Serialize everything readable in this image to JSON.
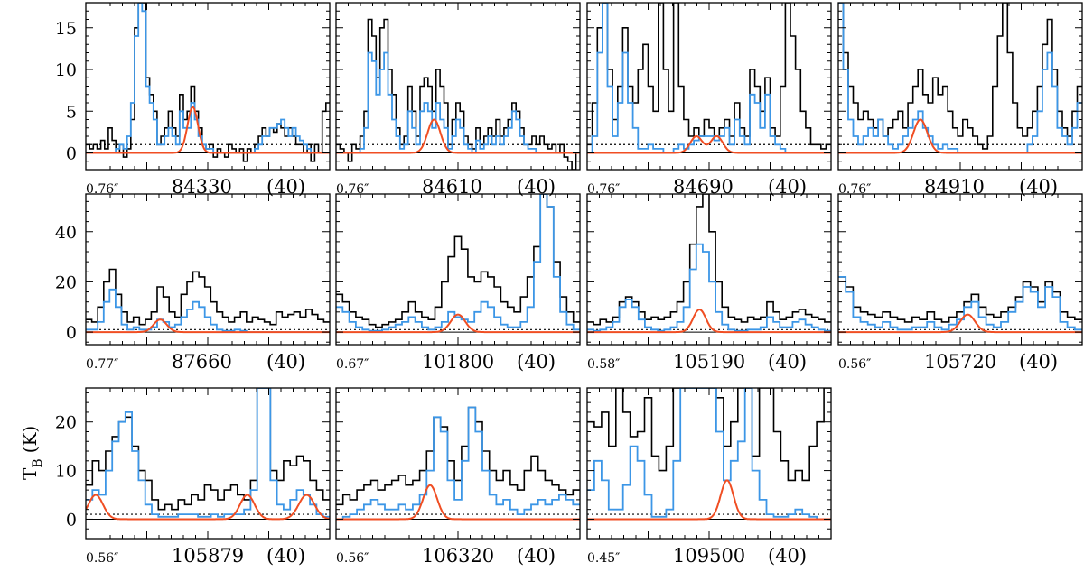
{
  "figure": {
    "ylabel_main": "T",
    "ylabel_sub": "B",
    "ylabel_unit": "(K)"
  },
  "colors": {
    "observed": "#000000",
    "model_total": "#3c96e6",
    "model_species": "#f04e23",
    "zero_line": "#000000"
  },
  "chart_data": [
    {
      "type": "line",
      "row": 0,
      "col": 0,
      "resolution": "0.76″",
      "frequency": "84330",
      "width": "(40)",
      "ylim": [
        -2,
        18
      ],
      "yticks": [
        0,
        5,
        10,
        15
      ],
      "threshold": 1,
      "obs": [
        1,
        0.5,
        1,
        0.5,
        1.5,
        0.5,
        3,
        1.5,
        0,
        1,
        -0.5,
        0.5,
        4,
        15,
        18,
        18,
        9,
        7,
        5,
        1,
        2,
        3,
        5,
        3,
        2,
        7,
        4,
        5,
        8,
        5,
        3,
        1,
        0.5,
        1,
        -0.5,
        0.5,
        0,
        -0.5,
        1,
        0.5,
        0,
        0.5,
        -1,
        0.5,
        0,
        1,
        2,
        3,
        2,
        3,
        2.5,
        3.5,
        3,
        2,
        3,
        2,
        1,
        1,
        0,
        1,
        -1,
        1,
        0,
        5,
        6
      ],
      "blue": [
        0,
        0,
        0,
        0,
        0,
        0,
        0,
        0,
        0.5,
        1,
        0.5,
        2,
        6,
        14,
        18,
        17,
        8,
        6,
        4,
        1,
        1,
        2,
        3,
        2,
        1,
        5,
        3,
        3,
        6,
        4,
        2,
        1,
        0.5,
        0.5,
        0,
        0,
        0,
        0,
        0,
        0,
        0,
        0,
        0,
        0,
        0,
        0.5,
        1,
        2,
        2,
        3,
        3,
        3.5,
        4,
        3,
        2,
        3,
        2,
        1.5,
        1,
        0.5,
        0,
        0,
        0,
        0,
        0
      ],
      "red_peaks": [
        [
          28,
          5.5,
          1.4
        ]
      ]
    },
    {
      "type": "line",
      "row": 0,
      "col": 1,
      "resolution": "0.76″",
      "frequency": "84610",
      "width": "(40)",
      "ylim": [
        -2,
        18
      ],
      "yticks": [
        0,
        5,
        10,
        15
      ],
      "threshold": 1,
      "obs": [
        1,
        0.5,
        0,
        -1,
        1,
        0.5,
        2,
        5,
        16,
        14,
        9,
        15,
        16,
        10,
        7,
        3,
        1,
        2,
        8,
        5,
        2,
        8,
        9,
        8,
        5,
        10,
        8,
        6,
        1,
        4,
        6,
        5,
        2,
        1,
        0.5,
        3,
        1,
        2,
        3,
        2,
        4,
        2,
        3,
        4,
        6,
        5,
        3,
        1,
        1,
        2,
        1,
        2,
        1,
        0.5,
        1,
        0,
        1,
        -0.5,
        -1,
        -2,
        0
      ],
      "blue": [
        0,
        0,
        0,
        0,
        0,
        0,
        0.5,
        3,
        12,
        11,
        7,
        10,
        12,
        7,
        4,
        2,
        0.5,
        1,
        5,
        3,
        1,
        5,
        6,
        5,
        3,
        6,
        4,
        3,
        0.5,
        2,
        4,
        3,
        1,
        0.5,
        0,
        1.5,
        0.5,
        1,
        2,
        1,
        2,
        1,
        2,
        3,
        5,
        4,
        2,
        1,
        0.5,
        0.5,
        0,
        0,
        0,
        0,
        0,
        0,
        0,
        0,
        0,
        0,
        0
      ],
      "red_peaks": [
        [
          24,
          4,
          1.6
        ]
      ]
    },
    {
      "type": "line",
      "row": 0,
      "col": 2,
      "resolution": "0.76″",
      "frequency": "84690",
      "width": "(40)",
      "ylim": [
        -2,
        18
      ],
      "yticks": [
        0,
        5,
        10,
        15
      ],
      "threshold": 1,
      "obs": [
        1,
        6,
        15,
        18,
        10,
        4,
        8,
        15,
        8,
        6,
        10,
        13,
        8,
        5,
        18,
        10,
        5,
        18,
        8,
        4,
        2,
        3,
        2,
        4,
        3,
        2,
        3,
        4,
        2,
        6,
        3,
        2,
        10,
        8,
        5,
        9,
        3,
        2,
        8,
        18,
        14,
        10,
        5,
        3,
        1,
        1,
        0.5,
        1
      ],
      "blue": [
        0,
        2,
        12,
        18,
        8,
        2,
        6,
        12,
        6,
        3,
        0.5,
        0.5,
        1,
        0.5,
        0.5,
        0,
        0,
        0.5,
        1,
        0.5,
        1,
        1.5,
        2,
        2,
        2,
        1.5,
        2,
        3,
        1,
        4,
        2,
        1,
        7,
        6,
        3,
        7,
        2,
        1,
        0.5,
        0,
        0,
        0,
        0,
        0,
        0,
        0,
        0,
        0
      ],
      "red_peaks": [
        [
          21,
          2,
          1.2
        ],
        [
          25,
          2,
          1.2
        ]
      ]
    },
    {
      "type": "line",
      "row": 0,
      "col": 3,
      "resolution": "0.76″",
      "frequency": "84910",
      "width": "(40)",
      "ylim": [
        -2,
        18
      ],
      "yticks": [
        0,
        5,
        10,
        15
      ],
      "threshold": 1,
      "obs": [
        18,
        12,
        8,
        6,
        4,
        5,
        4,
        3,
        4,
        2,
        3,
        4,
        5,
        3,
        6,
        8,
        10,
        7,
        6,
        9,
        7,
        8,
        5,
        3,
        2,
        4,
        3,
        2,
        1,
        0.5,
        2,
        8,
        14,
        18,
        12,
        6,
        3,
        2,
        3,
        5,
        8,
        13,
        16,
        10,
        5,
        3,
        2,
        5,
        8
      ],
      "blue": [
        18,
        10,
        4,
        2,
        1,
        2,
        3,
        2,
        4,
        2,
        1,
        0.5,
        1,
        2,
        3,
        4,
        5,
        3,
        2,
        1,
        0.5,
        1,
        0.5,
        0.5,
        0,
        0,
        0,
        0,
        0,
        0,
        0,
        0,
        0,
        0,
        0,
        0,
        0,
        0,
        1,
        2,
        5,
        10,
        12,
        8,
        3,
        2,
        1,
        3,
        6
      ],
      "red_peaks": [
        [
          16,
          4,
          1.4
        ]
      ]
    },
    {
      "type": "line",
      "row": 1,
      "col": 0,
      "resolution": "0.77″",
      "frequency": "87660",
      "width": "(40)",
      "ylim": [
        -5,
        55
      ],
      "yticks": [
        0,
        20,
        40
      ],
      "threshold": 1,
      "obs": [
        5,
        4,
        10,
        20,
        25,
        15,
        8,
        4,
        6,
        3,
        5,
        8,
        18,
        14,
        8,
        6,
        15,
        20,
        24,
        22,
        18,
        12,
        8,
        6,
        4,
        6,
        8,
        4,
        6,
        5,
        4,
        3,
        8,
        6,
        7,
        8,
        6,
        9,
        7,
        5,
        4
      ],
      "blue": [
        1,
        1,
        4,
        12,
        17,
        10,
        3,
        1,
        2,
        1,
        1,
        2,
        5,
        4,
        2,
        3,
        6,
        9,
        12,
        10,
        6,
        3,
        1,
        0.5,
        0.5,
        1,
        0.5,
        0,
        0,
        0,
        0,
        0,
        0,
        0,
        0,
        0,
        0,
        0,
        0,
        0,
        0
      ],
      "red_peaks": [
        [
          12,
          5,
          1.1
        ]
      ]
    },
    {
      "type": "line",
      "row": 1,
      "col": 1,
      "resolution": "0.67″",
      "frequency": "101800",
      "width": "(40)",
      "ylim": [
        -5,
        55
      ],
      "yticks": [
        0,
        20,
        40
      ],
      "threshold": 1,
      "obs": [
        15,
        12,
        8,
        6,
        5,
        3,
        2,
        3,
        4,
        5,
        8,
        12,
        8,
        6,
        5,
        10,
        20,
        30,
        38,
        33,
        22,
        20,
        24,
        22,
        18,
        12,
        10,
        8,
        14,
        22,
        34,
        55,
        50,
        28,
        14,
        8,
        4
      ],
      "blue": [
        10,
        8,
        4,
        2,
        1,
        0.5,
        0.5,
        1,
        2,
        3,
        4,
        6,
        4,
        2,
        1,
        2,
        4,
        8,
        6,
        5,
        4,
        8,
        12,
        10,
        6,
        3,
        2,
        2,
        4,
        10,
        28,
        55,
        50,
        22,
        8,
        3,
        1
      ],
      "red_peaks": [
        [
          18,
          7,
          1.1
        ]
      ]
    },
    {
      "type": "line",
      "row": 1,
      "col": 2,
      "resolution": "0.58″",
      "frequency": "105190",
      "width": "(40)",
      "ylim": [
        -5,
        55
      ],
      "yticks": [
        0,
        20,
        40
      ],
      "threshold": 1,
      "obs": [
        4,
        3,
        5,
        4,
        6,
        12,
        14,
        12,
        8,
        5,
        6,
        5,
        6,
        8,
        12,
        20,
        35,
        50,
        55,
        40,
        20,
        10,
        6,
        5,
        4,
        6,
        5,
        6,
        12,
        8,
        5,
        6,
        8,
        9,
        7,
        6,
        5,
        4
      ],
      "blue": [
        1,
        0.5,
        1,
        2,
        4,
        10,
        13,
        10,
        5,
        2,
        1,
        0.5,
        1,
        2,
        4,
        10,
        25,
        35,
        32,
        20,
        8,
        3,
        1,
        0.5,
        0.5,
        1,
        1,
        2,
        6,
        4,
        2,
        2,
        4,
        5,
        3,
        2,
        1,
        0.5
      ],
      "red_peaks": [
        [
          17,
          9,
          1.0
        ]
      ]
    },
    {
      "type": "line",
      "row": 1,
      "col": 3,
      "resolution": "0.56″",
      "frequency": "105720",
      "width": "(40)",
      "ylim": [
        -5,
        55
      ],
      "yticks": [
        0,
        20,
        40
      ],
      "threshold": 1,
      "obs": [
        22,
        18,
        10,
        8,
        7,
        6,
        8,
        6,
        5,
        4,
        6,
        5,
        8,
        5,
        4,
        6,
        8,
        12,
        15,
        10,
        7,
        6,
        8,
        10,
        14,
        20,
        18,
        12,
        20,
        16,
        8,
        6,
        5
      ],
      "blue": [
        22,
        16,
        6,
        4,
        3,
        2,
        4,
        2,
        1,
        1,
        2,
        2,
        4,
        2,
        1,
        3,
        5,
        10,
        12,
        6,
        3,
        2,
        4,
        8,
        12,
        18,
        16,
        10,
        18,
        14,
        4,
        2,
        1
      ],
      "red_peaks": [
        [
          17,
          7,
          1.0
        ]
      ]
    },
    {
      "type": "line",
      "row": 2,
      "col": 0,
      "resolution": "0.56″",
      "frequency": "105879",
      "width": "(40)",
      "ylim": [
        -4,
        27
      ],
      "yticks": [
        0,
        10,
        20
      ],
      "threshold": 1,
      "obs": [
        7,
        12,
        10,
        14,
        17,
        20,
        21,
        15,
        10,
        8,
        4,
        2,
        3,
        2,
        4,
        3,
        5,
        4,
        7,
        6,
        4,
        6,
        7,
        5,
        4,
        8,
        27,
        27,
        10,
        8,
        12,
        11,
        13,
        12,
        8,
        6,
        4
      ],
      "blue": [
        4,
        6,
        5,
        10,
        16,
        20,
        22,
        14,
        8,
        3,
        1,
        0.5,
        0.5,
        0.5,
        1,
        1,
        1,
        0.5,
        0.5,
        1,
        0.5,
        1,
        1,
        1,
        2,
        6,
        27,
        27,
        8,
        3,
        2,
        4,
        6,
        5,
        3,
        1,
        0.5
      ],
      "red_peaks": [
        [
          1,
          5,
          1.1
        ],
        [
          24,
          5,
          1.1
        ],
        [
          33,
          5,
          1.2
        ]
      ]
    },
    {
      "type": "line",
      "row": 2,
      "col": 1,
      "resolution": "0.56″",
      "frequency": "106320",
      "width": "(40)",
      "ylim": [
        -4,
        27
      ],
      "yticks": [
        0,
        10,
        20
      ],
      "threshold": 1,
      "obs": [
        3,
        5,
        4,
        6,
        7,
        8,
        6,
        7,
        8,
        9,
        7,
        8,
        10,
        14,
        21,
        19,
        12,
        8,
        15,
        23,
        20,
        14,
        10,
        8,
        10,
        7,
        6,
        10,
        13,
        10,
        8,
        7,
        6,
        5,
        6
      ],
      "blue": [
        0,
        0.5,
        1,
        2,
        3,
        4,
        3,
        2,
        2,
        3,
        2,
        3,
        5,
        10,
        21,
        18,
        8,
        4,
        12,
        23,
        18,
        10,
        5,
        3,
        4,
        2,
        1,
        2,
        3,
        4,
        3,
        4,
        5,
        4,
        3
      ],
      "red_peaks": [
        [
          13,
          7,
          1.0
        ]
      ]
    },
    {
      "type": "line",
      "row": 2,
      "col": 2,
      "resolution": "0.45″",
      "frequency": "109500",
      "width": "(40)",
      "ylim": [
        -4,
        27
      ],
      "yticks": [
        0,
        10,
        20
      ],
      "threshold": 1,
      "obs": [
        20,
        19,
        22,
        15,
        27,
        22,
        17,
        18,
        25,
        13,
        10,
        15,
        27,
        27,
        27,
        27,
        27,
        27,
        25,
        15,
        20,
        27,
        27,
        13,
        27,
        27,
        18,
        12,
        8,
        10,
        8,
        15,
        20,
        27
      ],
      "blue": [
        6,
        12,
        8,
        2,
        2,
        7,
        15,
        12,
        5,
        0.5,
        0.5,
        2,
        12,
        27,
        27,
        27,
        27,
        27,
        18,
        8,
        12,
        16,
        27,
        10,
        4,
        1,
        0.5,
        0.5,
        1,
        2,
        1,
        0.5,
        0,
        0
      ],
      "red_peaks": [
        [
          19,
          8,
          0.9
        ]
      ]
    }
  ]
}
